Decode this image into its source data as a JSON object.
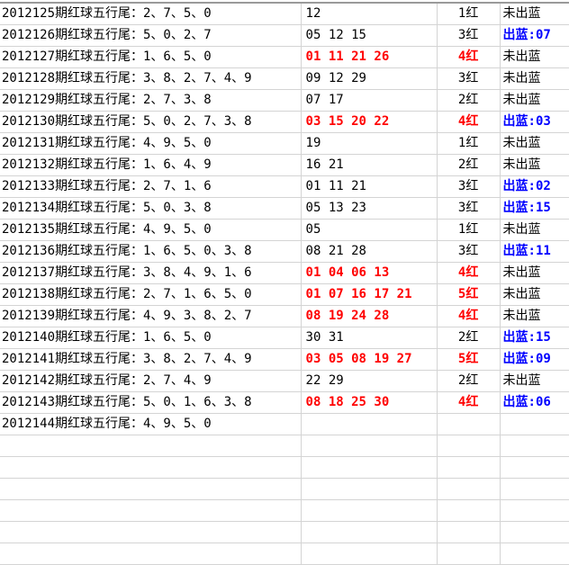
{
  "colors": {
    "hit": "#ff0000",
    "blue_out": "#0000ff",
    "grid": "#d4d4d4"
  },
  "rows": [
    {
      "label": "2012125期红球五行尾：2、7、5、0",
      "numbers": "12",
      "count": "1红",
      "blue": "未出蓝",
      "hot": false,
      "blue_hit": false
    },
    {
      "label": "2012126期红球五行尾：5、0、2、7",
      "numbers": "05 12 15",
      "count": "3红",
      "blue": "出蓝:07",
      "hot": false,
      "blue_hit": true
    },
    {
      "label": "2012127期红球五行尾：1、6、5、0",
      "numbers": "01 11 21 26",
      "count": "4红",
      "blue": "未出蓝",
      "hot": true,
      "blue_hit": false
    },
    {
      "label": "2012128期红球五行尾：3、8、2、7、4、9",
      "numbers": "09 12 29",
      "count": "3红",
      "blue": "未出蓝",
      "hot": false,
      "blue_hit": false
    },
    {
      "label": "2012129期红球五行尾：2、7、3、8",
      "numbers": "07 17",
      "count": "2红",
      "blue": "未出蓝",
      "hot": false,
      "blue_hit": false
    },
    {
      "label": "2012130期红球五行尾：5、0、2、7、3、8",
      "numbers": "03 15 20 22",
      "count": "4红",
      "blue": "出蓝:03",
      "hot": true,
      "blue_hit": true
    },
    {
      "label": "2012131期红球五行尾：4、9、5、0",
      "numbers": "19",
      "count": "1红",
      "blue": "未出蓝",
      "hot": false,
      "blue_hit": false
    },
    {
      "label": "2012132期红球五行尾：1、6、4、9",
      "numbers": "16 21",
      "count": "2红",
      "blue": "未出蓝",
      "hot": false,
      "blue_hit": false
    },
    {
      "label": "2012133期红球五行尾：2、7、1、6",
      "numbers": "01 11 21",
      "count": "3红",
      "blue": "出蓝:02",
      "hot": false,
      "blue_hit": true
    },
    {
      "label": "2012134期红球五行尾：5、0、3、8",
      "numbers": "05 13 23",
      "count": "3红",
      "blue": "出蓝:15",
      "hot": false,
      "blue_hit": true
    },
    {
      "label": "2012135期红球五行尾：4、9、5、0",
      "numbers": "05",
      "count": "1红",
      "blue": "未出蓝",
      "hot": false,
      "blue_hit": false
    },
    {
      "label": "2012136期红球五行尾：1、6、5、0、3、8",
      "numbers": "08 21 28",
      "count": "3红",
      "blue": "出蓝:11",
      "hot": false,
      "blue_hit": true
    },
    {
      "label": "2012137期红球五行尾：3、8、4、9、1、6",
      "numbers": "01 04 06 13",
      "count": "4红",
      "blue": "未出蓝",
      "hot": true,
      "blue_hit": false
    },
    {
      "label": "2012138期红球五行尾：2、7、1、6、5、0",
      "numbers": "01 07 16 17 21",
      "count": "5红",
      "blue": "未出蓝",
      "hot": true,
      "blue_hit": false
    },
    {
      "label": "2012139期红球五行尾：4、9、3、8、2、7",
      "numbers": "08 19 24 28",
      "count": "4红",
      "blue": "未出蓝",
      "hot": true,
      "blue_hit": false
    },
    {
      "label": "2012140期红球五行尾：1、6、5、0",
      "numbers": "30 31",
      "count": "2红",
      "blue": "出蓝:15",
      "hot": false,
      "blue_hit": true
    },
    {
      "label": "2012141期红球五行尾：3、8、2、7、4、9",
      "numbers": "03 05 08 19 27",
      "count": "5红",
      "blue": "出蓝:09",
      "hot": true,
      "blue_hit": true
    },
    {
      "label": "2012142期红球五行尾：2、7、4、9",
      "numbers": "22 29",
      "count": "2红",
      "blue": "未出蓝",
      "hot": false,
      "blue_hit": false
    },
    {
      "label": "2012143期红球五行尾：5、0、1、6、3、8",
      "numbers": "08 18 25 30",
      "count": "4红",
      "blue": "出蓝:06",
      "hot": true,
      "blue_hit": true
    },
    {
      "label": "2012144期红球五行尾：4、9、5、0",
      "numbers": "",
      "count": "",
      "blue": "",
      "hot": false,
      "blue_hit": false
    },
    {
      "label": "",
      "numbers": "",
      "count": "",
      "blue": "",
      "hot": false,
      "blue_hit": false
    },
    {
      "label": "",
      "numbers": "",
      "count": "",
      "blue": "",
      "hot": false,
      "blue_hit": false
    },
    {
      "label": "",
      "numbers": "",
      "count": "",
      "blue": "",
      "hot": false,
      "blue_hit": false
    },
    {
      "label": "",
      "numbers": "",
      "count": "",
      "blue": "",
      "hot": false,
      "blue_hit": false
    },
    {
      "label": "",
      "numbers": "",
      "count": "",
      "blue": "",
      "hot": false,
      "blue_hit": false
    },
    {
      "label": "",
      "numbers": "",
      "count": "",
      "blue": "",
      "hot": false,
      "blue_hit": false
    }
  ]
}
